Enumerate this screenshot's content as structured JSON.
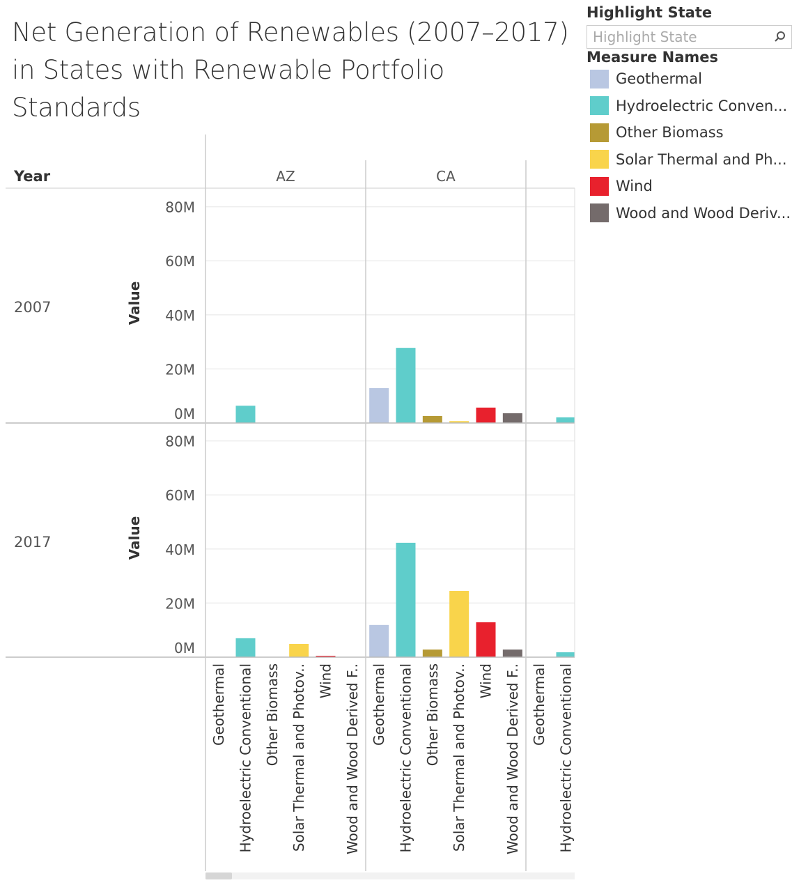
{
  "title": "Net Generation of Renewables (2007–2017) in States with Renewable Portfolio Standards",
  "highlight": {
    "label": "Highlight State",
    "placeholder": "Highlight State",
    "icon": "search-icon"
  },
  "legend": {
    "title": "Measure Names",
    "items": [
      {
        "label": "Geothermal",
        "color": "#b9c7e2"
      },
      {
        "label": "Hydroelectric Conven...",
        "color": "#5fcdcb"
      },
      {
        "label": "Other Biomass",
        "color": "#b69a35"
      },
      {
        "label": "Solar Thermal and Ph...",
        "color": "#f9d44b"
      },
      {
        "label": "Wind",
        "color": "#e8212d"
      },
      {
        "label": "Wood and Wood Deriv...",
        "color": "#746b6b"
      }
    ]
  },
  "chart_data": {
    "type": "bar",
    "row_header": "Year",
    "ylabel": "Value",
    "yticks": [
      "0M",
      "20M",
      "40M",
      "60M",
      "80M"
    ],
    "ylim": [
      0,
      80
    ],
    "units": "M",
    "grid": true,
    "legend_placement": "right",
    "category_labels": [
      "Geothermal",
      "Hydroelectric Conventional",
      "Other Biomass",
      "Solar Thermal and Photov..",
      "Wind",
      "Wood and Wood Derived F.."
    ],
    "states": [
      "AZ",
      "CA",
      ""
    ],
    "years": [
      {
        "year": "2007",
        "values": {
          "AZ": [
            0,
            6.4,
            0,
            0,
            0,
            0
          ],
          "CA": [
            12.9,
            27.8,
            2.6,
            0.7,
            5.7,
            3.6
          ],
          "": [
            0,
            2.1
          ]
        }
      },
      {
        "year": "2017",
        "values": {
          "AZ": [
            0,
            7.0,
            0,
            4.9,
            0.5,
            0
          ],
          "CA": [
            11.9,
            42.3,
            2.8,
            24.5,
            12.9,
            2.8
          ],
          "": [
            0,
            1.8
          ]
        }
      }
    ]
  }
}
